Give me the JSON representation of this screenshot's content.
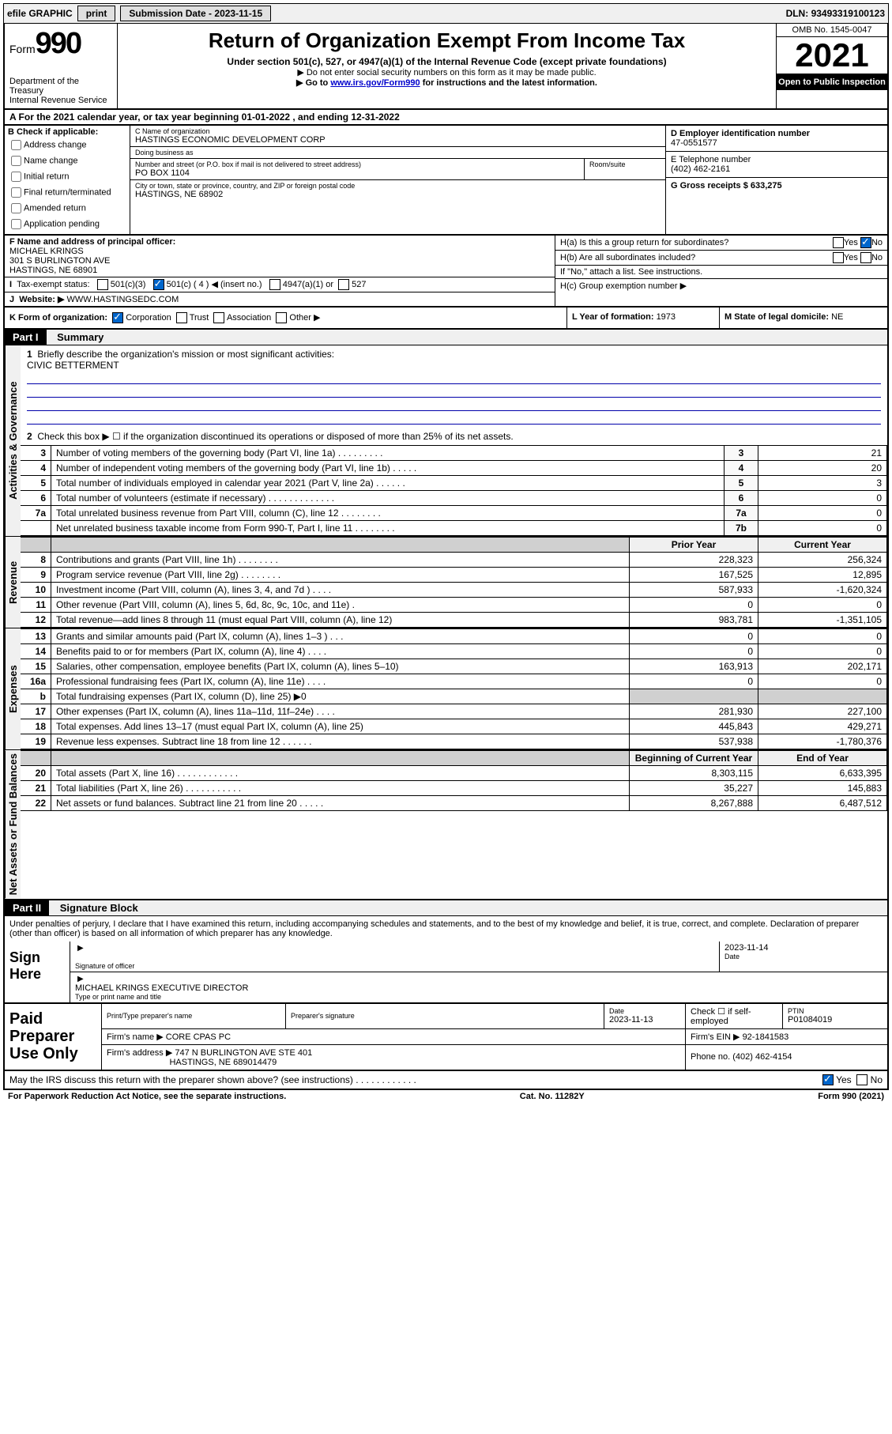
{
  "topbar": {
    "efile": "efile GRAPHIC",
    "print": "print",
    "submission_label": "Submission Date - ",
    "submission_date": "2023-11-15",
    "dln_label": "DLN: ",
    "dln": "93493319100123"
  },
  "header": {
    "form_word": "Form",
    "form_num": "990",
    "dept": "Department of the Treasury",
    "irs": "Internal Revenue Service",
    "title": "Return of Organization Exempt From Income Tax",
    "subtitle": "Under section 501(c), 527, or 4947(a)(1) of the Internal Revenue Code (except private foundations)",
    "note1": "▶ Do not enter social security numbers on this form as it may be made public.",
    "note2_pre": "▶ Go to ",
    "note2_link": "www.irs.gov/Form990",
    "note2_post": " for instructions and the latest information.",
    "omb": "OMB No. 1545-0047",
    "year": "2021",
    "open": "Open to Public Inspection"
  },
  "rowA": "A For the 2021 calendar year, or tax year beginning 01-01-2022   , and ending 12-31-2022",
  "sectionB": {
    "label": "B Check if applicable:",
    "opts": [
      "Address change",
      "Name change",
      "Initial return",
      "Final return/terminated",
      "Amended return",
      "Application pending"
    ]
  },
  "sectionC": {
    "name_lbl": "C Name of organization",
    "name": "HASTINGS ECONOMIC DEVELOPMENT CORP",
    "dba_lbl": "Doing business as",
    "dba": "",
    "addr_lbl": "Number and street (or P.O. box if mail is not delivered to street address)",
    "room_lbl": "Room/suite",
    "addr": "PO BOX 1104",
    "city_lbl": "City or town, state or province, country, and ZIP or foreign postal code",
    "city": "HASTINGS, NE  68902"
  },
  "sectionD": {
    "ein_lbl": "D Employer identification number",
    "ein": "47-0551577",
    "tel_lbl": "E Telephone number",
    "tel": "(402) 462-2161",
    "gross_lbl": "G Gross receipts $ ",
    "gross": "633,275"
  },
  "sectionF": {
    "lbl": "F Name and address of principal officer:",
    "name": "MICHAEL KRINGS",
    "addr1": "301 S BURLINGTON AVE",
    "addr2": "HASTINGS, NE  68901"
  },
  "rowI": {
    "lbl": "Tax-exempt status:",
    "o1": "501(c)(3)",
    "o2": "501(c) ( 4 ) ◀ (insert no.)",
    "o3": "4947(a)(1) or",
    "o4": "527"
  },
  "rowJ": {
    "lbl": "Website: ▶",
    "val": "WWW.HASTINGSEDC.COM"
  },
  "sectionH": {
    "a_lbl": "H(a)  Is this a group return for subordinates?",
    "b_lbl": "H(b)  Are all subordinates included?",
    "b_note": "If \"No,\" attach a list. See instructions.",
    "c_lbl": "H(c)  Group exemption number ▶"
  },
  "rowK": {
    "lbl": "K Form of organization:",
    "o1": "Corporation",
    "o2": "Trust",
    "o3": "Association",
    "o4": "Other ▶"
  },
  "rowL": {
    "lbl": "L Year of formation: ",
    "val": "1973"
  },
  "rowM": {
    "lbl": "M State of legal domicile: ",
    "val": "NE"
  },
  "part1": {
    "hdr": "Part I",
    "title": "Summary",
    "q1": "Briefly describe the organization's mission or most significant activities:",
    "mission": "CIVIC BETTERMENT",
    "q2": "Check this box ▶ ☐  if the organization discontinued its operations or disposed of more than 25% of its net assets.",
    "sections": {
      "ag": "Activities & Governance",
      "rev": "Revenue",
      "exp": "Expenses",
      "net": "Net Assets or Fund Balances"
    },
    "lines_single": [
      {
        "n": "3",
        "d": "Number of voting members of the governing body (Part VI, line 1a)  .   .   .   .   .   .   .   .   .",
        "b": "3",
        "v": "21"
      },
      {
        "n": "4",
        "d": "Number of independent voting members of the governing body (Part VI, line 1b)   .   .   .   .   .",
        "b": "4",
        "v": "20"
      },
      {
        "n": "5",
        "d": "Total number of individuals employed in calendar year 2021 (Part V, line 2a)   .   .   .   .   .   .",
        "b": "5",
        "v": "3"
      },
      {
        "n": "6",
        "d": "Total number of volunteers (estimate if necessary)   .   .   .   .   .   .   .   .   .   .   .   .   .",
        "b": "6",
        "v": "0"
      },
      {
        "n": "7a",
        "d": "Total unrelated business revenue from Part VIII, column (C), line 12   .   .   .   .   .   .   .   .",
        "b": "7a",
        "v": "0"
      },
      {
        "n": "",
        "d": "Net unrelated business taxable income from Form 990-T, Part I, line 11  .   .   .   .   .   .   .   .",
        "b": "7b",
        "v": "0"
      }
    ],
    "col_hdr_prior": "Prior Year",
    "col_hdr_current": "Current Year",
    "rev_lines": [
      {
        "n": "8",
        "d": "Contributions and grants (Part VIII, line 1h)   .   .   .   .   .   .   .   .",
        "p": "228,323",
        "c": "256,324"
      },
      {
        "n": "9",
        "d": "Program service revenue (Part VIII, line 2g)   .   .   .   .   .   .   .   .",
        "p": "167,525",
        "c": "12,895"
      },
      {
        "n": "10",
        "d": "Investment income (Part VIII, column (A), lines 3, 4, and 7d )   .   .   .   .",
        "p": "587,933",
        "c": "-1,620,324"
      },
      {
        "n": "11",
        "d": "Other revenue (Part VIII, column (A), lines 5, 6d, 8c, 9c, 10c, and 11e)  .",
        "p": "0",
        "c": "0"
      },
      {
        "n": "12",
        "d": "Total revenue—add lines 8 through 11 (must equal Part VIII, column (A), line 12)",
        "p": "983,781",
        "c": "-1,351,105"
      }
    ],
    "exp_lines": [
      {
        "n": "13",
        "d": "Grants and similar amounts paid (Part IX, column (A), lines 1–3 )   .   .   .",
        "p": "0",
        "c": "0"
      },
      {
        "n": "14",
        "d": "Benefits paid to or for members (Part IX, column (A), line 4)   .   .   .   .",
        "p": "0",
        "c": "0"
      },
      {
        "n": "15",
        "d": "Salaries, other compensation, employee benefits (Part IX, column (A), lines 5–10)",
        "p": "163,913",
        "c": "202,171"
      },
      {
        "n": "16a",
        "d": "Professional fundraising fees (Part IX, column (A), line 11e)   .   .   .   .",
        "p": "0",
        "c": "0"
      },
      {
        "n": "b",
        "d": "Total fundraising expenses (Part IX, column (D), line 25) ▶0",
        "shade": true
      },
      {
        "n": "17",
        "d": "Other expenses (Part IX, column (A), lines 11a–11d, 11f–24e)   .   .   .   .",
        "p": "281,930",
        "c": "227,100"
      },
      {
        "n": "18",
        "d": "Total expenses. Add lines 13–17 (must equal Part IX, column (A), line 25)",
        "p": "445,843",
        "c": "429,271"
      },
      {
        "n": "19",
        "d": "Revenue less expenses. Subtract line 18 from line 12   .   .   .   .   .   .",
        "p": "537,938",
        "c": "-1,780,376"
      }
    ],
    "col_hdr_begin": "Beginning of Current Year",
    "col_hdr_end": "End of Year",
    "net_lines": [
      {
        "n": "20",
        "d": "Total assets (Part X, line 16)   .   .   .   .   .   .   .   .   .   .   .   .",
        "p": "8,303,115",
        "c": "6,633,395"
      },
      {
        "n": "21",
        "d": "Total liabilities (Part X, line 26)   .   .   .   .   .   .   .   .   .   .   .",
        "p": "35,227",
        "c": "145,883"
      },
      {
        "n": "22",
        "d": "Net assets or fund balances. Subtract line 21 from line 20   .   .   .   .   .",
        "p": "8,267,888",
        "c": "6,487,512"
      }
    ]
  },
  "part2": {
    "hdr": "Part II",
    "title": "Signature Block",
    "decl": "Under penalties of perjury, I declare that I have examined this return, including accompanying schedules and statements, and to the best of my knowledge and belief, it is true, correct, and complete. Declaration of preparer (other than officer) is based on all information of which preparer has any knowledge.",
    "sign_here": "Sign Here",
    "sig_officer_lbl": "Signature of officer",
    "date_lbl": "Date",
    "sig_date": "2023-11-14",
    "name_title": "MICHAEL KRINGS  EXECUTIVE DIRECTOR",
    "name_title_lbl": "Type or print name and title",
    "paid": "Paid Preparer Use Only",
    "prep_name_lbl": "Print/Type preparer's name",
    "prep_sig_lbl": "Preparer's signature",
    "prep_date_lbl": "Date",
    "prep_date": "2023-11-13",
    "check_self": "Check ☐ if self-employed",
    "ptin_lbl": "PTIN",
    "ptin": "P01084019",
    "firm_name_lbl": "Firm's name   ▶",
    "firm_name": "CORE CPAS PC",
    "firm_ein_lbl": "Firm's EIN ▶",
    "firm_ein": "92-1841583",
    "firm_addr_lbl": "Firm's address ▶",
    "firm_addr1": "747 N BURLINGTON AVE STE 401",
    "firm_addr2": "HASTINGS, NE  689014479",
    "phone_lbl": "Phone no. ",
    "phone": "(402) 462-4154",
    "may_irs": "May the IRS discuss this return with the preparer shown above? (see instructions)   .   .   .   .   .   .   .   .   .   .   .   .",
    "yes": "Yes",
    "no": "No"
  },
  "footer": {
    "left": "For Paperwork Reduction Act Notice, see the separate instructions.",
    "mid": "Cat. No. 11282Y",
    "right": "Form 990 (2021)"
  }
}
